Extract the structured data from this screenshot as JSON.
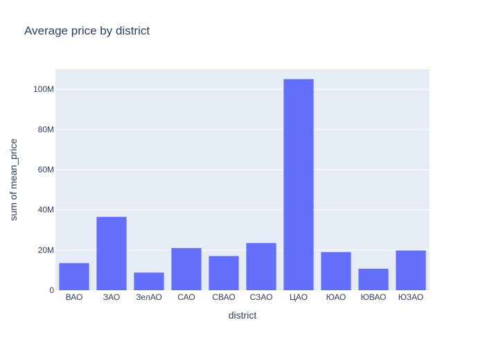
{
  "chart_data": {
    "type": "bar",
    "title": "Average price by district",
    "xlabel": "district",
    "ylabel": "sum of mean_price",
    "categories": [
      "ВАО",
      "ЗАО",
      "ЗелАО",
      "САО",
      "СВАО",
      "СЗАО",
      "ЦАО",
      "ЮАО",
      "ЮВАО",
      "ЮЗАО"
    ],
    "values": [
      13500000,
      36500000,
      8800000,
      21000000,
      17000000,
      23500000,
      105000000,
      19000000,
      10700000,
      19800000
    ],
    "ylim": [
      0,
      110000000
    ],
    "yticks": [
      0,
      20000000,
      40000000,
      60000000,
      80000000,
      100000000
    ],
    "ytick_labels": [
      "0",
      "20M",
      "40M",
      "60M",
      "80M",
      "100M"
    ],
    "grid": true,
    "colors": {
      "bar": "#636efa",
      "plot_bg": "#e5ecf6",
      "paper_bg": "#ffffff",
      "grid": "#ffffff",
      "text": "#2a3f5f"
    }
  }
}
